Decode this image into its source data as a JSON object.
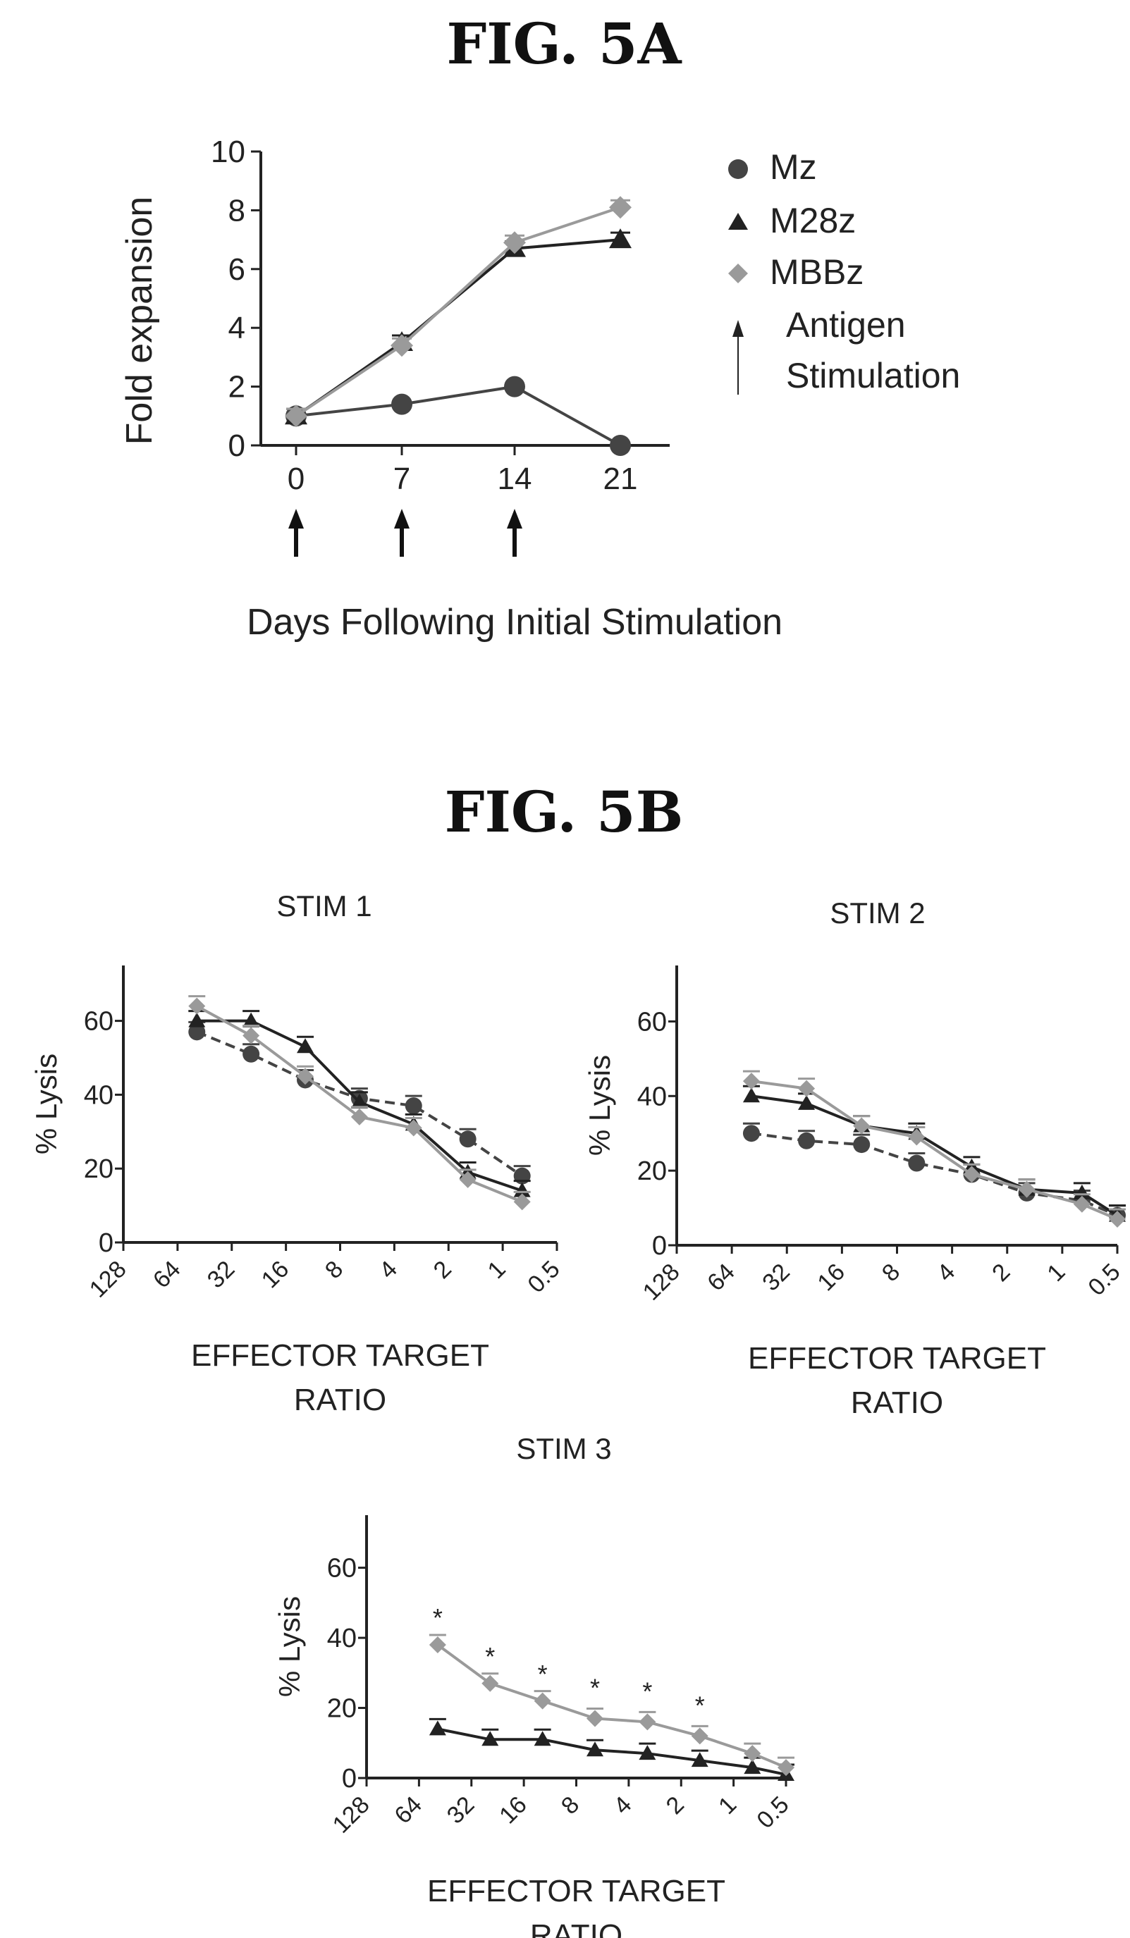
{
  "figures": {
    "fig5a_title": "FIG. 5A",
    "fig5b_title": "FIG. 5B"
  },
  "legend": {
    "items": [
      {
        "label": "Mz",
        "marker": "circle"
      },
      {
        "label": "M28z",
        "marker": "triangle"
      },
      {
        "label": "MBBz",
        "marker": "diamond"
      }
    ],
    "arrow_label_line1": "Antigen",
    "arrow_label_line2": "Stimulation"
  },
  "colors": {
    "ink": "#222222",
    "Mz": "#444444",
    "M28z": "#222222",
    "MBBz": "#9a9a9a"
  },
  "chart_data": [
    {
      "id": "fig5a",
      "type": "line",
      "title": "",
      "xlabel": "Days Following Initial Stimulation",
      "ylabel": "Fold expansion",
      "x": [
        0,
        7,
        14,
        21
      ],
      "xticks": [
        "0",
        "7",
        "14",
        "21"
      ],
      "yticks": [
        "0",
        "2",
        "4",
        "6",
        "8",
        "10"
      ],
      "ylim": [
        0,
        10
      ],
      "stimulation_days": [
        0,
        7,
        14
      ],
      "series": [
        {
          "name": "Mz",
          "marker": "circle",
          "values": [
            1.0,
            1.4,
            2.0,
            0.0
          ]
        },
        {
          "name": "M28z",
          "marker": "triangle",
          "values": [
            1.0,
            3.5,
            6.7,
            7.0
          ]
        },
        {
          "name": "MBBz",
          "marker": "diamond",
          "values": [
            1.0,
            3.4,
            6.9,
            8.1
          ]
        }
      ],
      "legend": "right"
    },
    {
      "id": "stim1",
      "type": "line",
      "title": "STIM 1",
      "xlabel_line1": "EFFECTOR TARGET",
      "xlabel_line2": "RATIO",
      "ylabel": "% Lysis",
      "xticks": [
        "128",
        "64",
        "32",
        "16",
        "8",
        "4",
        "2",
        "1",
        "0.5"
      ],
      "yticks": [
        "0",
        "20",
        "40",
        "60"
      ],
      "ylim": [
        0,
        75
      ],
      "x": [
        50,
        25,
        12.5,
        6.25,
        3.125,
        1.5625,
        0.78
      ],
      "series": [
        {
          "name": "Mz",
          "marker": "circle",
          "values": [
            57,
            51,
            44,
            39,
            37,
            28,
            18
          ]
        },
        {
          "name": "M28z",
          "marker": "triangle",
          "values": [
            60,
            60,
            53,
            38,
            32,
            19,
            14
          ]
        },
        {
          "name": "MBBz",
          "marker": "diamond",
          "values": [
            64,
            56,
            45,
            34,
            31,
            17,
            11
          ]
        }
      ]
    },
    {
      "id": "stim2",
      "type": "line",
      "title": "STIM 2",
      "xlabel_line1": "EFFECTOR TARGET",
      "xlabel_line2": "RATIO",
      "ylabel": "% Lysis",
      "xticks": [
        "128",
        "64",
        "32",
        "16",
        "8",
        "4",
        "2",
        "1",
        "0.5"
      ],
      "yticks": [
        "0",
        "20",
        "40",
        "60"
      ],
      "ylim": [
        0,
        75
      ],
      "x": [
        50,
        25,
        12.5,
        6.25,
        3.125,
        1.5625,
        0.78,
        0.5
      ],
      "series": [
        {
          "name": "Mz",
          "marker": "circle",
          "values": [
            30,
            28,
            27,
            22,
            19,
            14,
            12,
            8
          ]
        },
        {
          "name": "M28z",
          "marker": "triangle",
          "values": [
            40,
            38,
            32,
            30,
            21,
            15,
            14,
            8
          ]
        },
        {
          "name": "MBBz",
          "marker": "diamond",
          "values": [
            44,
            42,
            32,
            29,
            19,
            15,
            11,
            7
          ]
        }
      ]
    },
    {
      "id": "stim3",
      "type": "line",
      "title": "STIM 3",
      "xlabel_line1": "EFFECTOR TARGET",
      "xlabel_line2": "RATIO",
      "ylabel": "% Lysis",
      "xticks": [
        "128",
        "64",
        "32",
        "16",
        "8",
        "4",
        "2",
        "1",
        "0.5"
      ],
      "yticks": [
        "0",
        "20",
        "40",
        "60"
      ],
      "ylim": [
        0,
        75
      ],
      "x": [
        50,
        25,
        12.5,
        6.25,
        3.125,
        1.5625,
        0.78,
        0.5
      ],
      "series": [
        {
          "name": "M28z",
          "marker": "triangle",
          "values": [
            14,
            11,
            11,
            8,
            7,
            5,
            3,
            1
          ]
        },
        {
          "name": "MBBz",
          "marker": "diamond",
          "values": [
            38,
            27,
            22,
            17,
            16,
            12,
            7,
            3
          ]
        }
      ],
      "annotations": [
        {
          "text": "*",
          "x": 50,
          "y": 46
        },
        {
          "text": "*",
          "x": 25,
          "y": 35
        },
        {
          "text": "*",
          "x": 12.5,
          "y": 30
        },
        {
          "text": "*",
          "x": 6.25,
          "y": 26
        },
        {
          "text": "*",
          "x": 3.125,
          "y": 25
        },
        {
          "text": "*",
          "x": 1.5625,
          "y": 21
        }
      ]
    }
  ]
}
